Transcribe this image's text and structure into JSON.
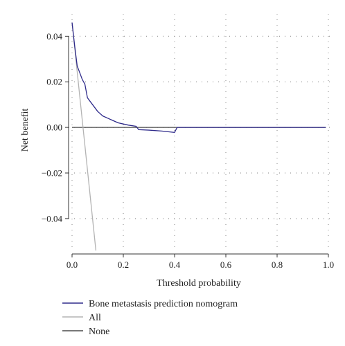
{
  "chart_data": {
    "type": "line",
    "xlabel": "Threshold probability",
    "ylabel": "Net benefit",
    "xlim": [
      0.0,
      1.0
    ],
    "ylim": [
      -0.054,
      0.048
    ],
    "x_ticks": [
      0.0,
      0.2,
      0.4,
      0.6,
      0.8,
      1.0
    ],
    "x_tick_labels": [
      "0.0",
      "0.2",
      "0.4",
      "0.6",
      "0.8",
      "1.0"
    ],
    "y_ticks": [
      0.04,
      0.02,
      0.0,
      -0.02,
      -0.04
    ],
    "y_tick_labels": [
      "0.04",
      "0.02",
      "0.00",
      "−0.02",
      "−0.04"
    ],
    "grid": true,
    "legend_position": "bottom",
    "series": [
      {
        "name": "Bone metastasis prediction nomogram",
        "color": "#2e2a8a",
        "x": [
          0.0,
          0.01,
          0.02,
          0.03,
          0.04,
          0.05,
          0.06,
          0.08,
          0.1,
          0.12,
          0.14,
          0.16,
          0.18,
          0.2,
          0.22,
          0.25,
          0.26,
          0.3,
          0.35,
          0.4,
          0.41,
          0.42,
          0.5,
          0.6,
          0.7,
          0.8,
          0.9,
          0.99
        ],
        "y": [
          0.046,
          0.036,
          0.027,
          0.024,
          0.021,
          0.019,
          0.013,
          0.01,
          0.007,
          0.005,
          0.004,
          0.003,
          0.002,
          0.0015,
          0.001,
          0.0005,
          -0.001,
          -0.0012,
          -0.0016,
          -0.0022,
          0.0,
          0.0,
          0.0,
          0.0,
          0.0,
          0.0,
          0.0,
          0.0
        ]
      },
      {
        "name": "All",
        "color": "#b3b3b3",
        "x": [
          0.0,
          0.093
        ],
        "y": [
          0.046,
          -0.054
        ]
      },
      {
        "name": "None",
        "color": "#4a4a4a",
        "x": [
          0.0,
          0.99
        ],
        "y": [
          0.0,
          0.0
        ]
      }
    ]
  }
}
